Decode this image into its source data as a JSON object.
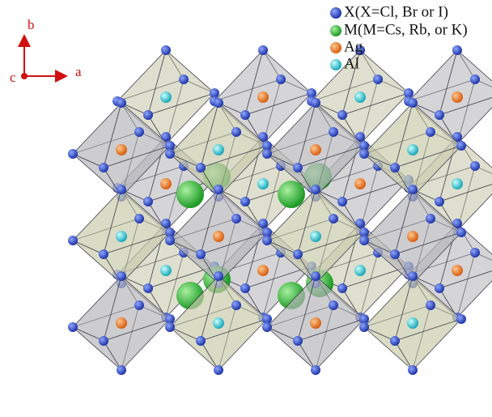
{
  "axes": {
    "b": "b",
    "c": "c",
    "a": "a"
  },
  "legend": [
    {
      "label": "X(X=Cl, Br or I)"
    },
    {
      "label": "M(M=Cs, Rb, or K)"
    },
    {
      "label": "Ag"
    },
    {
      "label": "Al"
    }
  ]
}
